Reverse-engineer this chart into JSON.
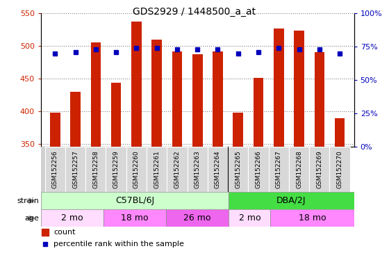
{
  "title": "GDS2929 / 1448500_a_at",
  "samples": [
    "GSM152256",
    "GSM152257",
    "GSM152258",
    "GSM152259",
    "GSM152260",
    "GSM152261",
    "GSM152262",
    "GSM152263",
    "GSM152264",
    "GSM152265",
    "GSM152266",
    "GSM152267",
    "GSM152268",
    "GSM152269",
    "GSM152270"
  ],
  "counts": [
    397,
    430,
    505,
    443,
    537,
    510,
    491,
    487,
    492,
    397,
    451,
    527,
    523,
    490,
    389
  ],
  "percentile_ranks": [
    70,
    71,
    73,
    71,
    74,
    74,
    73,
    73,
    73,
    70,
    71,
    74,
    73,
    73,
    70
  ],
  "ylim": [
    345,
    550
  ],
  "yticks": [
    350,
    400,
    450,
    500,
    550
  ],
  "bar_color": "#cc2200",
  "dot_color": "#0000bb",
  "bar_bottom": 345,
  "right_ylim": [
    0,
    100
  ],
  "right_yticks": [
    0,
    25,
    50,
    75,
    100
  ],
  "right_yticklabels": [
    "0%",
    "25%",
    "50%",
    "75%",
    "100%"
  ],
  "strain_groups": [
    {
      "label": "C57BL/6J",
      "start": 0,
      "end": 9,
      "color": "#ccffcc"
    },
    {
      "label": "DBA/2J",
      "start": 9,
      "end": 15,
      "color": "#44dd44"
    }
  ],
  "age_groups": [
    {
      "label": "2 mo",
      "start": 0,
      "end": 3,
      "color": "#ffddff"
    },
    {
      "label": "18 mo",
      "start": 3,
      "end": 6,
      "color": "#ff88ff"
    },
    {
      "label": "26 mo",
      "start": 6,
      "end": 9,
      "color": "#ee66ee"
    },
    {
      "label": "2 mo",
      "start": 9,
      "end": 11,
      "color": "#ffddff"
    },
    {
      "label": "18 mo",
      "start": 11,
      "end": 15,
      "color": "#ff88ff"
    }
  ],
  "axis_label_color_left": "#cc2200",
  "axis_label_color_right": "#0000bb",
  "bar_width": 0.5
}
